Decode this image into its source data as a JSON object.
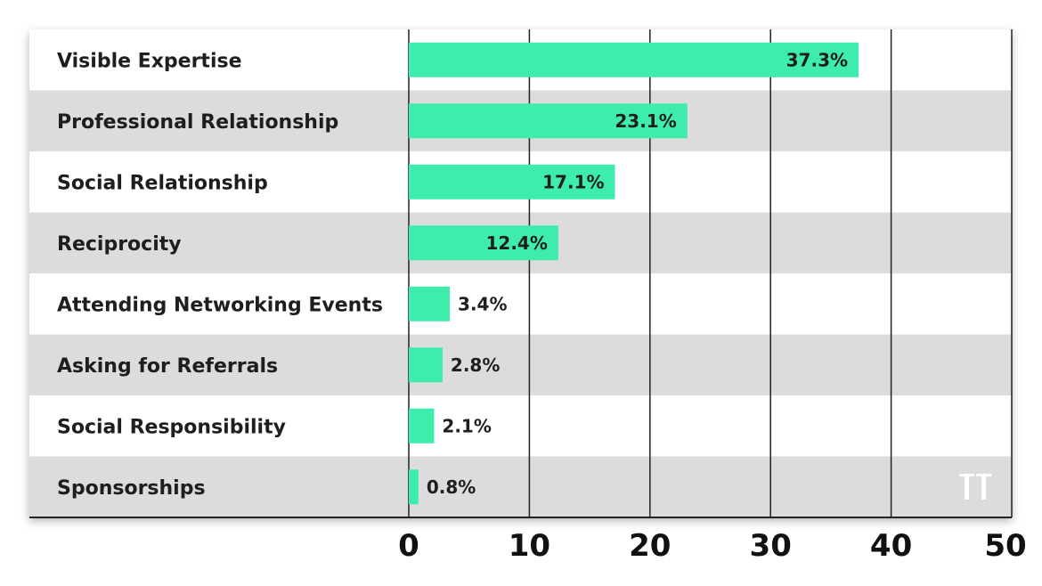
{
  "chart_data": {
    "type": "bar",
    "orientation": "horizontal",
    "categories": [
      "Visible Expertise",
      "Professional Relationship",
      "Social Relationship",
      "Reciprocity",
      "Attending Networking Events",
      "Asking for Referrals",
      "Social Responsibility",
      "Sponsorships"
    ],
    "values": [
      37.3,
      23.1,
      17.1,
      12.4,
      3.4,
      2.8,
      2.1,
      0.8
    ],
    "value_labels": [
      "37.3%",
      "23.1%",
      "17.1%",
      "12.4%",
      "3.4%",
      "2.8%",
      "2.1%",
      "0.8%"
    ],
    "xticks": [
      "0",
      "10",
      "20",
      "30",
      "40",
      "50"
    ],
    "xlim": [
      0,
      50
    ],
    "title": "",
    "xlabel": "",
    "ylabel": "",
    "grid": "vertical",
    "legend": "none",
    "logo_text": "TT",
    "colors": {
      "bar": "#3eedac",
      "row_band": "#dcdcdc",
      "row_plain": "#ffffff",
      "gridline": "#222222",
      "text": "#1e1e1e",
      "logo": "#ffffff"
    }
  }
}
